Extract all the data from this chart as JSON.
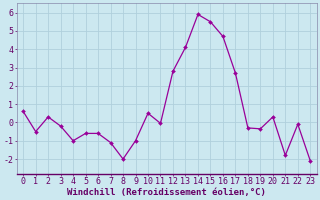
{
  "x": [
    0,
    1,
    2,
    3,
    4,
    5,
    6,
    7,
    8,
    9,
    10,
    11,
    12,
    13,
    14,
    15,
    16,
    17,
    18,
    19,
    20,
    21,
    22,
    23
  ],
  "y": [
    0.6,
    -0.5,
    0.3,
    -0.2,
    -1.0,
    -0.6,
    -0.6,
    -1.1,
    -2.0,
    -1.0,
    0.5,
    -0.05,
    2.8,
    4.1,
    5.9,
    5.5,
    4.7,
    2.7,
    -0.3,
    -0.35,
    0.3,
    -1.8,
    -0.1,
    -2.1
  ],
  "line_color": "#990099",
  "marker": "D",
  "marker_size": 2.0,
  "bg_color": "#cce8f0",
  "grid_color": "#b0d0dc",
  "xlabel": "Windchill (Refroidissement éolien,°C)",
  "xlabel_fontsize": 6.5,
  "tick_fontsize": 6,
  "ylim": [
    -2.8,
    6.5
  ],
  "xlim": [
    -0.5,
    23.5
  ],
  "yticks": [
    -2,
    -1,
    0,
    1,
    2,
    3,
    4,
    5,
    6
  ],
  "xticks": [
    0,
    1,
    2,
    3,
    4,
    5,
    6,
    7,
    8,
    9,
    10,
    11,
    12,
    13,
    14,
    15,
    16,
    17,
    18,
    19,
    20,
    21,
    22,
    23
  ]
}
